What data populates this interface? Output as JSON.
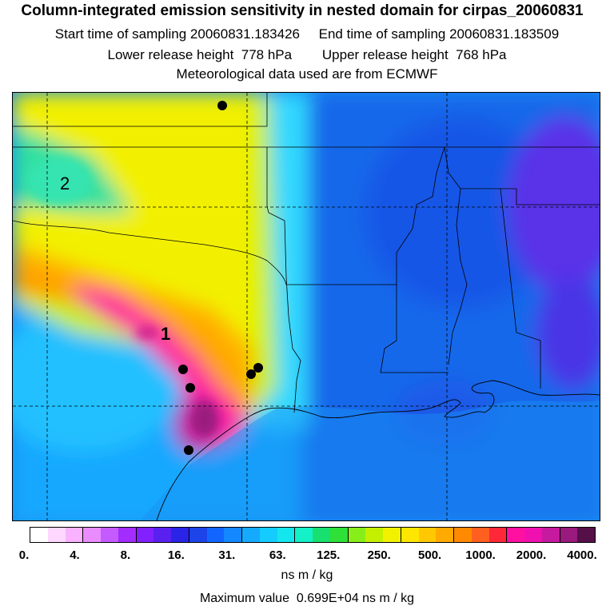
{
  "header": {
    "title": "Column-integrated emission sensitivity in nested domain for cirpas_20060831",
    "sampling_line": "Start time of sampling 20060831.183426     End time of sampling 20060831.183509",
    "release_line": "Lower release height  778 hPa        Upper release height  768 hPa",
    "met_line": "Meteorological data used are from ECMWF"
  },
  "map": {
    "labels": [
      {
        "id": "label-2",
        "text": "2"
      },
      {
        "id": "label-1",
        "text": "1"
      }
    ]
  },
  "colorbar": {
    "colors": [
      "#ffffff",
      "#ffd8ff",
      "#f9b2ff",
      "#e88cff",
      "#c55bff",
      "#a32cff",
      "#8220ff",
      "#5a20f0",
      "#2a24e6",
      "#1d44e8",
      "#1266ff",
      "#1488ff",
      "#16aaff",
      "#14ccff",
      "#14e6ee",
      "#14f0c8",
      "#18e070",
      "#2ee038",
      "#88ee1a",
      "#c4f000",
      "#f2f200",
      "#ffe600",
      "#ffc800",
      "#ffaa00",
      "#ff8a00",
      "#ff6020",
      "#ff2838",
      "#ff10a0",
      "#f010b0",
      "#c61a9e",
      "#9a1a7e",
      "#561048"
    ],
    "tick_labels": [
      "0.",
      "4.",
      "8.",
      "16.",
      "31.",
      "63.",
      "125.",
      "250.",
      "500.",
      "1000.",
      "2000.",
      "4000."
    ],
    "unit": "ns m / kg"
  },
  "footer": {
    "maximum": "Maximum value  0.699E+04 ns m / kg"
  }
}
